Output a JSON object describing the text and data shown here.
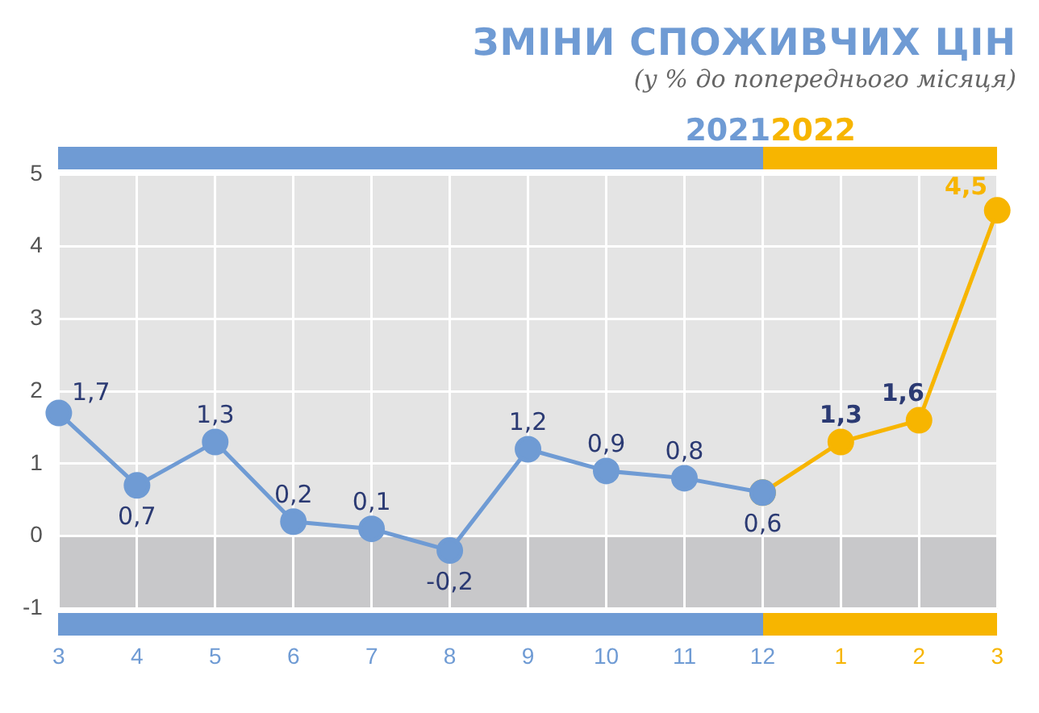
{
  "chart_data": {
    "type": "line",
    "title": "ЗМІНИ СПОЖИВЧИХ ЦІН",
    "subtitle": "(у % до попереднього місяця)",
    "categories": [
      "3",
      "4",
      "5",
      "6",
      "7",
      "8",
      "9",
      "10",
      "11",
      "12",
      "1",
      "2",
      "3"
    ],
    "series": [
      {
        "name": "2021",
        "color": "#6f9bd4",
        "values": [
          1.7,
          0.7,
          1.3,
          0.2,
          0.1,
          -0.2,
          1.2,
          0.9,
          0.8,
          0.6,
          null,
          null,
          null
        ],
        "value_labels": [
          "1,7",
          "0,7",
          "1,3",
          "0,2",
          "0,1",
          "-0,2",
          "1,2",
          "0,9",
          "0,8",
          "0,6",
          null,
          null,
          null
        ]
      },
      {
        "name": "2022",
        "color": "#f7b500",
        "values": [
          null,
          null,
          null,
          null,
          null,
          null,
          null,
          null,
          null,
          0.6,
          1.3,
          1.6,
          4.5
        ],
        "value_labels": [
          null,
          null,
          null,
          null,
          null,
          null,
          null,
          null,
          null,
          null,
          "1,3",
          "1,6",
          "4,5"
        ]
      }
    ],
    "ylim": [
      -1,
      5
    ],
    "yticks": [
      -1,
      0,
      1,
      2,
      3,
      4,
      5
    ],
    "grid": true,
    "marker": "circle",
    "legend": "top right",
    "bands": [
      {
        "axis": "y",
        "from": -1,
        "to": 0,
        "color": "#c8c8ca"
      }
    ]
  }
}
